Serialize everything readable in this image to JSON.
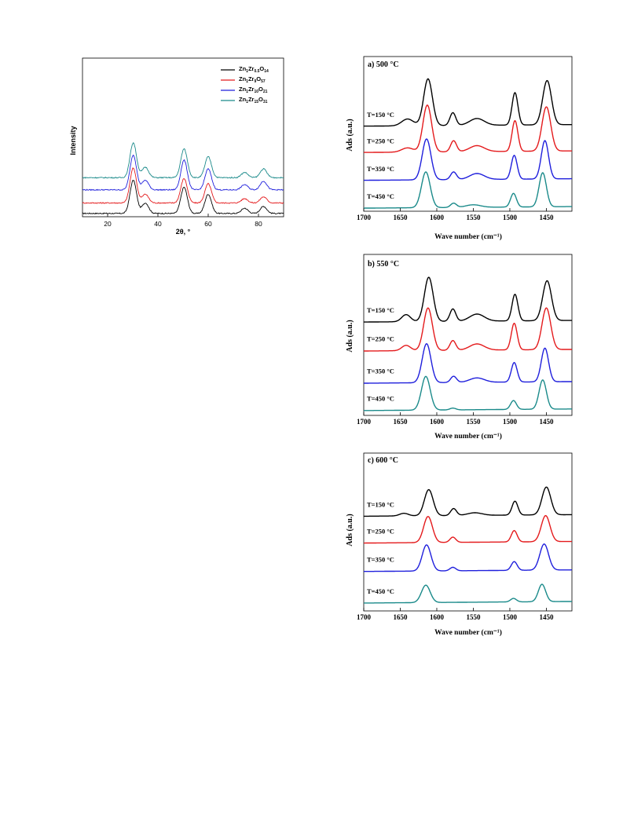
{
  "chart_data": [
    {
      "type": "line",
      "xlabel": "2θ, °",
      "ylabel": "Intensity",
      "xlim": [
        10,
        90
      ],
      "ylim": [
        0,
        1
      ],
      "xticks": [
        20,
        40,
        60,
        80
      ],
      "legend_position": "top-right",
      "series": [
        {
          "name": "Zn1Zr0.5O14",
          "color": "#000000",
          "offset": 0.0,
          "peaks": [
            [
              30.2,
              0.38
            ],
            [
              35.0,
              0.12
            ],
            [
              50.4,
              0.3
            ],
            [
              60.0,
              0.22
            ],
            [
              74.5,
              0.06
            ],
            [
              82.0,
              0.08
            ]
          ]
        },
        {
          "name": "Zn1Zr9O57",
          "color": "#e41a1c",
          "offset": 0.12,
          "peaks": [
            [
              30.2,
              0.4
            ],
            [
              35.0,
              0.1
            ],
            [
              50.4,
              0.28
            ],
            [
              60.0,
              0.22
            ],
            [
              74.5,
              0.05
            ],
            [
              82.0,
              0.07
            ]
          ]
        },
        {
          "name": "Zn1Zr10O21",
          "color": "#1f1fdc",
          "offset": 0.27,
          "peaks": [
            [
              30.2,
              0.4
            ],
            [
              35.0,
              0.11
            ],
            [
              50.4,
              0.34
            ],
            [
              60.0,
              0.24
            ],
            [
              74.5,
              0.06
            ],
            [
              82.0,
              0.1
            ]
          ]
        },
        {
          "name": "Zn1Zr15O31",
          "color": "#1a8a8a",
          "offset": 0.41,
          "peaks": [
            [
              30.2,
              0.4
            ],
            [
              35.0,
              0.12
            ],
            [
              50.4,
              0.33
            ],
            [
              60.0,
              0.24
            ],
            [
              74.5,
              0.06
            ],
            [
              82.0,
              0.1
            ]
          ]
        }
      ],
      "legend_labels": [
        {
          "base": "Zn",
          "s1": "1",
          "mid": "Zr",
          "s2": "0.5",
          "end": "O",
          "s3": "14"
        },
        {
          "base": "Zn",
          "s1": "1",
          "mid": "Zr",
          "s2": "9",
          "end": "O",
          "s3": "57"
        },
        {
          "base": "Zn",
          "s1": "1",
          "mid": "Zr",
          "s2": "10",
          "end": "O",
          "s3": "21"
        },
        {
          "base": "Zn",
          "s1": "1",
          "mid": "Zr",
          "s2": "15",
          "end": "O",
          "s3": "31"
        }
      ]
    },
    {
      "type": "line",
      "title": "a) 500 °C",
      "xlabel": "Wave number (cm⁻¹)",
      "ylabel": "Ads (a.u.)",
      "xlim": [
        1700,
        1415
      ],
      "xticks": [
        1700,
        1650,
        1600,
        1550,
        1500,
        1450
      ],
      "series": [
        {
          "name": "T=150 °C",
          "color": "#000000",
          "offset": 0.55,
          "peaks": [
            [
              1612,
              0.55,
              6
            ],
            [
              1578,
              0.15,
              4
            ],
            [
              1545,
              0.08,
              10
            ],
            [
              1493,
              0.38,
              4
            ],
            [
              1449,
              0.52,
              6
            ],
            [
              1640,
              0.08,
              8
            ]
          ]
        },
        {
          "name": "T=250 °C",
          "color": "#e41a1c",
          "offset": 0.38,
          "peaks": [
            [
              1613,
              0.55,
              6
            ],
            [
              1577,
              0.13,
              4
            ],
            [
              1545,
              0.07,
              10
            ],
            [
              1493,
              0.36,
              4
            ],
            [
              1450,
              0.52,
              6
            ],
            [
              1640,
              0.05,
              8
            ]
          ]
        },
        {
          "name": "T=350 °C",
          "color": "#1f1fdc",
          "offset": 0.2,
          "peaks": [
            [
              1614,
              0.48,
              6
            ],
            [
              1577,
              0.09,
              4
            ],
            [
              1545,
              0.07,
              10
            ],
            [
              1494,
              0.28,
              4
            ],
            [
              1452,
              0.45,
              5
            ]
          ]
        },
        {
          "name": "T=450 °C",
          "color": "#1a8a8a",
          "offset": 0.02,
          "peaks": [
            [
              1615,
              0.42,
              6
            ],
            [
              1577,
              0.05,
              4
            ],
            [
              1550,
              0.03,
              10
            ],
            [
              1495,
              0.16,
              4
            ],
            [
              1455,
              0.4,
              5
            ]
          ]
        }
      ]
    },
    {
      "type": "line",
      "title": "b) 550 °C",
      "xlabel": "Wave number (cm⁻¹)",
      "ylabel": "Ads (a.u.)",
      "xlim": [
        1700,
        1415
      ],
      "xticks": [
        1700,
        1650,
        1600,
        1550,
        1500,
        1450
      ],
      "series": [
        {
          "name": "T=150 °C",
          "color": "#000000",
          "offset": 0.58,
          "peaks": [
            [
              1611,
              0.5,
              6
            ],
            [
              1578,
              0.14,
              4
            ],
            [
              1545,
              0.08,
              10
            ],
            [
              1493,
              0.3,
              4
            ],
            [
              1449,
              0.45,
              6
            ],
            [
              1642,
              0.08,
              6
            ]
          ]
        },
        {
          "name": "T=250 °C",
          "color": "#e41a1c",
          "offset": 0.4,
          "peaks": [
            [
              1612,
              0.48,
              6
            ],
            [
              1578,
              0.11,
              4
            ],
            [
              1545,
              0.07,
              10
            ],
            [
              1494,
              0.3,
              4
            ],
            [
              1450,
              0.47,
              6
            ],
            [
              1642,
              0.06,
              6
            ]
          ]
        },
        {
          "name": "T=350 °C",
          "color": "#1f1fdc",
          "offset": 0.2,
          "peaks": [
            [
              1614,
              0.44,
              6
            ],
            [
              1577,
              0.07,
              4
            ],
            [
              1545,
              0.05,
              10
            ],
            [
              1494,
              0.22,
              4
            ],
            [
              1452,
              0.38,
              5
            ]
          ]
        },
        {
          "name": "T=450 °C",
          "color": "#1a8a8a",
          "offset": 0.03,
          "peaks": [
            [
              1615,
              0.38,
              6
            ],
            [
              1578,
              0.02,
              4
            ],
            [
              1495,
              0.1,
              4
            ],
            [
              1455,
              0.33,
              5
            ]
          ]
        }
      ]
    },
    {
      "type": "line",
      "title": "c) 600 °C",
      "xlabel": "Wave number (cm⁻¹)",
      "ylabel": "Ads (a.u.)",
      "xlim": [
        1700,
        1415
      ],
      "xticks": [
        1700,
        1650,
        1600,
        1550,
        1500,
        1450
      ],
      "series": [
        {
          "name": "T=150 °C",
          "color": "#000000",
          "offset": 0.6,
          "peaks": [
            [
              1611,
              0.3,
              6
            ],
            [
              1577,
              0.08,
              4
            ],
            [
              1548,
              0.03,
              10
            ],
            [
              1493,
              0.16,
              4
            ],
            [
              1450,
              0.32,
              6
            ],
            [
              1645,
              0.03,
              6
            ]
          ]
        },
        {
          "name": "T=250 °C",
          "color": "#e41a1c",
          "offset": 0.43,
          "peaks": [
            [
              1612,
              0.3,
              6
            ],
            [
              1578,
              0.06,
              4
            ],
            [
              1494,
              0.13,
              4
            ],
            [
              1451,
              0.3,
              6
            ]
          ]
        },
        {
          "name": "T=350 °C",
          "color": "#1f1fdc",
          "offset": 0.25,
          "peaks": [
            [
              1614,
              0.3,
              6
            ],
            [
              1578,
              0.04,
              4
            ],
            [
              1494,
              0.1,
              4
            ],
            [
              1453,
              0.3,
              6
            ]
          ]
        },
        {
          "name": "T=450 °C",
          "color": "#1a8a8a",
          "offset": 0.05,
          "peaks": [
            [
              1615,
              0.2,
              6
            ],
            [
              1495,
              0.04,
              4
            ],
            [
              1456,
              0.2,
              5
            ]
          ]
        }
      ]
    }
  ]
}
